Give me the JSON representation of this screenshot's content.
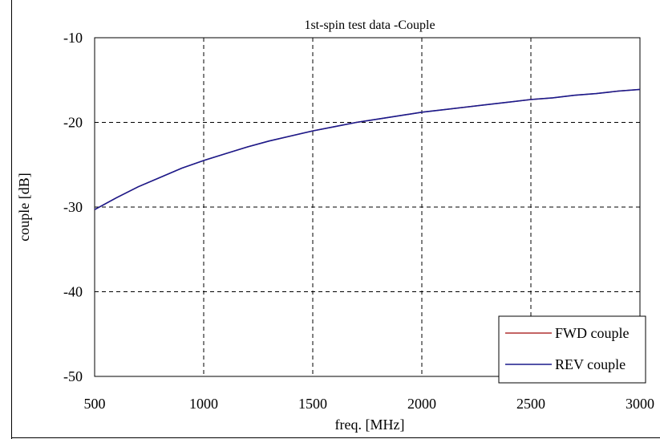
{
  "chart_data": {
    "type": "line",
    "title": "1st-spin test data -Couple",
    "xlabel": "freq. [MHz]",
    "ylabel": "couple [dB]",
    "xlim": [
      500,
      3000
    ],
    "ylim": [
      -50,
      -10
    ],
    "x_ticks": [
      "500",
      "1000",
      "1500",
      "2000",
      "2500",
      "3000"
    ],
    "y_ticks": [
      "-10",
      "-20",
      "-30",
      "-40",
      "-50"
    ],
    "grid": true,
    "legend_position": "bottom-right",
    "x": [
      500,
      600,
      700,
      800,
      900,
      1000,
      1100,
      1200,
      1300,
      1400,
      1500,
      1600,
      1700,
      1800,
      1900,
      2000,
      2100,
      2200,
      2300,
      2400,
      2500,
      2600,
      2700,
      2800,
      2900,
      3000
    ],
    "series": [
      {
        "name": "FWD couple",
        "color": "#b03030",
        "values": [
          -30.3,
          -28.9,
          -27.6,
          -26.5,
          -25.4,
          -24.5,
          -23.7,
          -22.9,
          -22.2,
          -21.6,
          -21.0,
          -20.5,
          -20.0,
          -19.6,
          -19.2,
          -18.8,
          -18.5,
          -18.2,
          -17.9,
          -17.6,
          -17.3,
          -17.1,
          -16.8,
          -16.6,
          -16.3,
          -16.1
        ]
      },
      {
        "name": "REV couple",
        "color": "#1a1a8c",
        "values": [
          -30.3,
          -28.9,
          -27.6,
          -26.5,
          -25.4,
          -24.5,
          -23.7,
          -22.9,
          -22.2,
          -21.6,
          -21.0,
          -20.5,
          -20.0,
          -19.6,
          -19.2,
          -18.8,
          -18.5,
          -18.2,
          -17.9,
          -17.6,
          -17.3,
          -17.1,
          -16.8,
          -16.6,
          -16.3,
          -16.1
        ]
      }
    ]
  }
}
